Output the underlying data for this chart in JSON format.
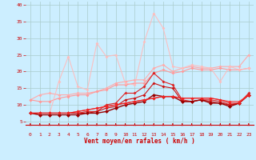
{
  "background_color": "#cceeff",
  "grid_color": "#aacccc",
  "xlabel": "Vent moyen/en rafales ( km/h )",
  "x_ticks": [
    0,
    1,
    2,
    3,
    4,
    5,
    6,
    7,
    8,
    9,
    10,
    11,
    12,
    13,
    14,
    15,
    16,
    17,
    18,
    19,
    20,
    21,
    22,
    23
  ],
  "ylim": [
    4,
    41
  ],
  "xlim": [
    -0.5,
    23.5
  ],
  "yticks": [
    5,
    10,
    15,
    20,
    25,
    30,
    35,
    40
  ],
  "series": [
    {
      "color": "#ffaaaa",
      "alpha": 1.0,
      "linewidth": 0.8,
      "markersize": 2.0,
      "y": [
        11.5,
        13.0,
        13.5,
        13.0,
        13.0,
        13.5,
        13.5,
        14.0,
        15.0,
        16.5,
        17.0,
        17.5,
        17.5,
        21.0,
        22.0,
        20.0,
        21.0,
        21.5,
        21.0,
        21.0,
        21.5,
        21.5,
        21.5,
        25.0
      ]
    },
    {
      "color": "#ff9999",
      "alpha": 1.0,
      "linewidth": 0.8,
      "markersize": 2.0,
      "y": [
        11.5,
        11.0,
        11.0,
        12.0,
        12.5,
        13.0,
        13.0,
        14.0,
        14.5,
        16.0,
        16.0,
        16.5,
        16.5,
        19.5,
        20.5,
        19.5,
        20.0,
        21.0,
        20.5,
        20.5,
        21.0,
        20.5,
        20.5,
        21.0
      ]
    },
    {
      "color": "#ffbbbb",
      "alpha": 0.9,
      "linewidth": 0.8,
      "markersize": 2.0,
      "y": [
        7.5,
        7.0,
        7.0,
        17.0,
        24.5,
        15.5,
        14.5,
        28.5,
        24.5,
        25.0,
        16.5,
        16.0,
        29.0,
        37.5,
        33.0,
        21.5,
        21.0,
        22.0,
        21.5,
        21.0,
        17.0,
        21.5,
        20.5,
        21.0
      ]
    },
    {
      "color": "#dd2222",
      "alpha": 1.0,
      "linewidth": 0.8,
      "markersize": 2.0,
      "y": [
        7.5,
        7.5,
        7.5,
        7.5,
        7.5,
        7.5,
        8.0,
        8.0,
        10.0,
        10.5,
        13.5,
        13.5,
        15.5,
        19.5,
        17.0,
        16.0,
        11.5,
        11.0,
        11.5,
        11.5,
        11.0,
        10.0,
        10.5,
        13.5
      ]
    },
    {
      "color": "#cc1111",
      "alpha": 1.0,
      "linewidth": 0.8,
      "markersize": 2.0,
      "y": [
        7.5,
        7.5,
        7.5,
        7.5,
        7.5,
        7.5,
        7.5,
        8.0,
        9.0,
        9.5,
        11.5,
        12.0,
        13.0,
        16.5,
        15.5,
        15.0,
        11.0,
        11.0,
        11.5,
        11.0,
        10.5,
        10.0,
        10.5,
        13.0
      ]
    },
    {
      "color": "#990000",
      "alpha": 1.0,
      "linewidth": 1.0,
      "markersize": 2.5,
      "y": [
        7.5,
        7.0,
        7.0,
        7.0,
        7.0,
        7.0,
        7.5,
        7.5,
        8.0,
        9.0,
        10.0,
        10.5,
        11.0,
        13.0,
        12.5,
        12.5,
        11.0,
        11.0,
        11.5,
        10.5,
        10.5,
        9.5,
        10.5,
        13.0
      ]
    },
    {
      "color": "#ff3333",
      "alpha": 1.0,
      "linewidth": 0.8,
      "markersize": 2.0,
      "y": [
        7.5,
        7.5,
        7.5,
        7.5,
        7.5,
        8.0,
        8.5,
        9.0,
        9.5,
        10.0,
        10.5,
        11.0,
        11.5,
        12.0,
        12.5,
        12.5,
        12.0,
        12.0,
        12.0,
        12.0,
        11.5,
        11.0,
        11.0,
        13.0
      ]
    },
    {
      "color": "#ee2222",
      "alpha": 1.0,
      "linewidth": 0.8,
      "markersize": 2.0,
      "y": [
        7.5,
        7.5,
        7.5,
        7.5,
        7.5,
        8.0,
        8.5,
        9.0,
        9.5,
        10.0,
        10.5,
        11.0,
        11.5,
        12.0,
        12.5,
        12.5,
        12.0,
        12.0,
        12.0,
        12.0,
        11.5,
        10.5,
        10.5,
        13.0
      ]
    }
  ],
  "arrow_color": "#cc0000",
  "tick_label_color": "#cc0000",
  "xlabel_color": "#cc0000",
  "ylabel_color": "#cc0000",
  "spine_color": "#cc0000"
}
